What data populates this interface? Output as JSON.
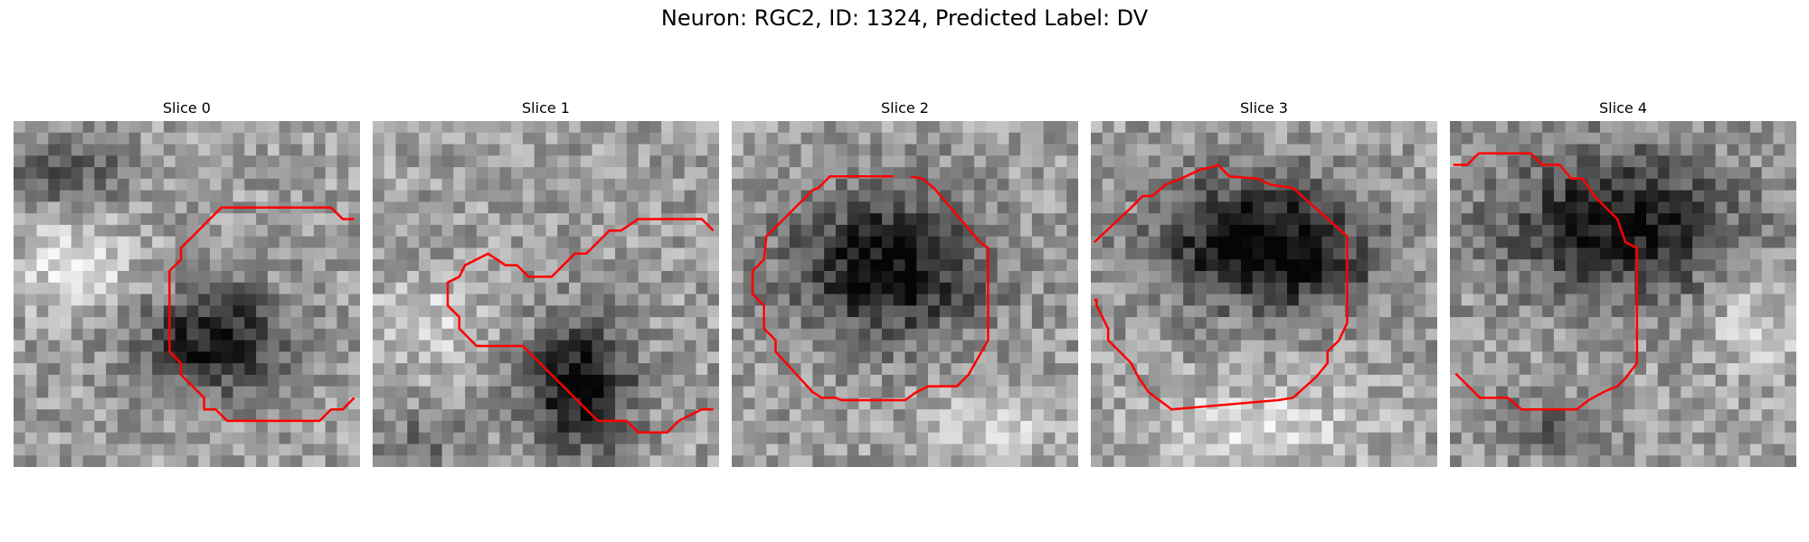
{
  "figure": {
    "suptitle": "Neuron: RGC2, ID: 1324, Predicted Label: DV"
  },
  "panels": [
    {
      "title": "Slice 0"
    },
    {
      "title": "Slice 1"
    },
    {
      "title": "Slice 2"
    },
    {
      "title": "Slice 3"
    },
    {
      "title": "Slice 4"
    }
  ],
  "colors": {
    "contour": "#ff0000"
  }
}
